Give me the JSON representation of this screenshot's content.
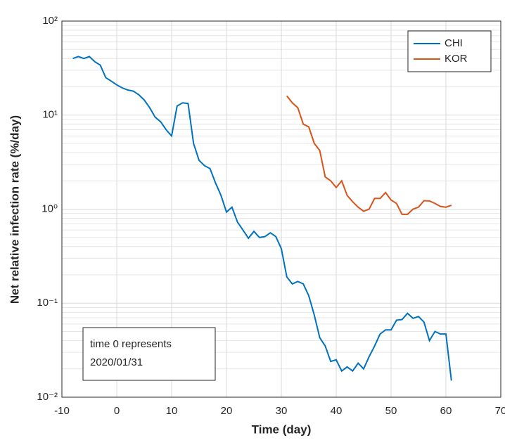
{
  "chart_data": {
    "type": "line",
    "xlabel": "Time (day)",
    "ylabel": "Net relative infection rate (%/day)",
    "log_y": true,
    "grid": true,
    "minor_grid": true,
    "legend": "top-right",
    "annotation": [
      "time 0 represents",
      "2020/01/31"
    ],
    "xlim": [
      -10,
      70
    ],
    "xticks": [
      -10,
      0,
      10,
      20,
      30,
      40,
      50,
      60,
      70
    ],
    "ylim": [
      0.01,
      100
    ],
    "yticks": [
      {
        "value": 0.01,
        "label": "10⁻²"
      },
      {
        "value": 0.1,
        "label": "10⁻¹"
      },
      {
        "value": 1,
        "label": "10⁰"
      },
      {
        "value": 10,
        "label": "10¹"
      },
      {
        "value": 100,
        "label": "10²"
      }
    ],
    "x": [
      -8,
      -7,
      -6,
      -5,
      -4,
      -3,
      -2,
      -1,
      0,
      1,
      2,
      3,
      4,
      5,
      6,
      7,
      8,
      9,
      10,
      11,
      12,
      13,
      14,
      15,
      16,
      17,
      18,
      19,
      20,
      21,
      22,
      23,
      24,
      25,
      26,
      27,
      28,
      29,
      30,
      31,
      32,
      33,
      34,
      35,
      36,
      37,
      38,
      39,
      40,
      41,
      42,
      43,
      44,
      45,
      46,
      47,
      48,
      49,
      50,
      51,
      52,
      53,
      54,
      55,
      56,
      57,
      58,
      59,
      60,
      61
    ],
    "series": [
      {
        "name": "CHI",
        "color": "#0072bd",
        "values": [
          40,
          42,
          40,
          42,
          37,
          34,
          25,
          23,
          21,
          19.5,
          18.5,
          18,
          16.5,
          14.5,
          12,
          9.5,
          8.5,
          7,
          6,
          12.5,
          13.5,
          13.3,
          5,
          3.3,
          2.9,
          2.7,
          1.9,
          1.4,
          0.93,
          1.05,
          0.73,
          0.6,
          0.49,
          0.58,
          0.5,
          0.51,
          0.56,
          0.51,
          0.38,
          0.19,
          0.16,
          0.17,
          0.16,
          0.12,
          0.075,
          0.043,
          0.035,
          0.024,
          0.025,
          0.019,
          0.021,
          0.019,
          0.023,
          0.02,
          0.027,
          0.035,
          0.047,
          0.052,
          0.052,
          0.066,
          0.067,
          0.078,
          0.069,
          0.072,
          0.063,
          0.04,
          0.05,
          0.047,
          0.047,
          0.015
        ]
      },
      {
        "name": "KOR",
        "color": "#d95319",
        "values": [
          null,
          null,
          null,
          null,
          null,
          null,
          null,
          null,
          null,
          null,
          null,
          null,
          null,
          null,
          null,
          null,
          null,
          null,
          null,
          null,
          null,
          null,
          null,
          null,
          null,
          null,
          null,
          null,
          null,
          null,
          null,
          null,
          null,
          null,
          null,
          null,
          null,
          null,
          null,
          16,
          13.5,
          12,
          8,
          7.5,
          5,
          4.2,
          2.2,
          2,
          1.7,
          2,
          1.4,
          1.2,
          1.05,
          0.95,
          1.0,
          1.3,
          1.3,
          1.5,
          1.25,
          1.15,
          0.88,
          0.88,
          1.0,
          1.05,
          1.23,
          1.22,
          1.15,
          1.07,
          1.05,
          1.1
        ]
      }
    ]
  }
}
